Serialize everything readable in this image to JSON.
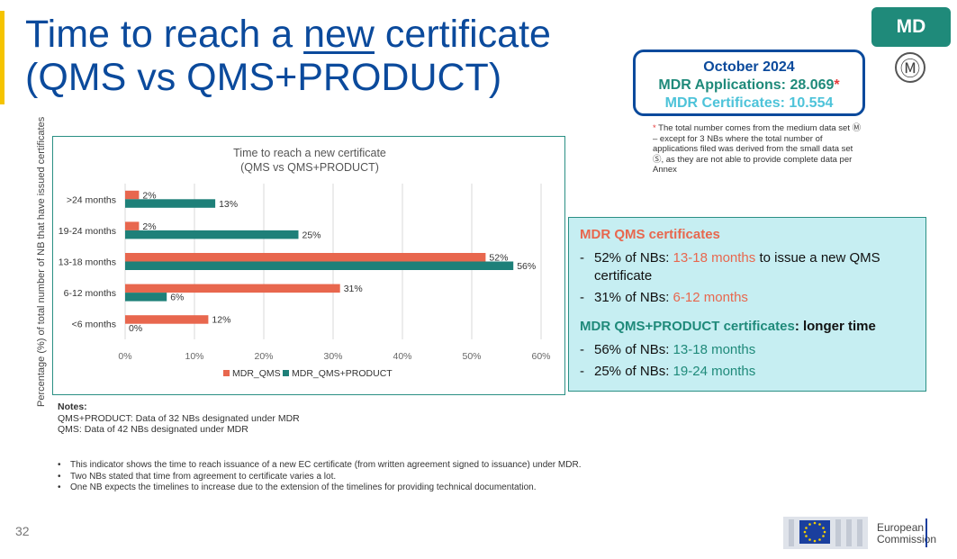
{
  "slide": {
    "title_part1": "Time to reach a ",
    "title_underlined": "new",
    "title_part2": " certificate",
    "title_line2": "(QMS vs QMS+PRODUCT)",
    "badge": "MD",
    "m_symbol": "Ⓜ",
    "page_number": "32"
  },
  "stats": {
    "date": "October 2024",
    "applications": "MDR Applications: 28.069",
    "applications_star": "*",
    "certificates": "MDR Certificates: 10.554"
  },
  "footnote": {
    "star": "*",
    "text": " The total number comes from the medium data set Ⓜ – except for 3 NBs where the total number of applications filed was derived from the small data set Ⓢ, as they are not able to provide complete data per Annex"
  },
  "y_axis_title": "Percentage (%) of total number of NB that have issued certificates",
  "chart_data": {
    "type": "bar",
    "orientation": "horizontal",
    "title": "Time to reach a new certificate",
    "subtitle": "(QMS vs QMS+PRODUCT)",
    "categories": [
      ">24 months",
      "19-24 months",
      "13-18 months",
      "6-12 months",
      "<6 months"
    ],
    "series": [
      {
        "name": "MDR_QMS",
        "values": [
          2,
          2,
          52,
          31,
          12
        ],
        "labels": [
          "2%",
          "2%",
          "52%",
          "31%",
          "12%"
        ],
        "color": "#e8674e"
      },
      {
        "name": "MDR_QMS+PRODUCT",
        "values": [
          13,
          25,
          56,
          6,
          0
        ],
        "labels": [
          "13%",
          "25%",
          "56%",
          "6%",
          "0%"
        ],
        "color": "#1e8079"
      }
    ],
    "xlim": [
      0,
      60
    ],
    "xticks": [
      0,
      10,
      20,
      30,
      40,
      50,
      60
    ],
    "xtick_labels": [
      "0%",
      "10%",
      "20%",
      "30%",
      "40%",
      "50%",
      "60%"
    ],
    "grid": true,
    "legend": "bottom"
  },
  "insights": {
    "qms_heading": "MDR QMS certificates",
    "qms_items": [
      {
        "prefix": "52% of NBs: ",
        "highlight": "13-18 months",
        "suffix": " to issue a new QMS certificate"
      },
      {
        "prefix": "31% of NBs: ",
        "highlight": "6-12 months",
        "suffix": ""
      }
    ],
    "product_heading": "MDR QMS+PRODUCT certificates",
    "product_heading_suffix": ": longer time",
    "product_items": [
      {
        "prefix": "56% of NBs: ",
        "highlight": "13-18 months"
      },
      {
        "prefix": "25% of NBs: ",
        "highlight": "19-24 months"
      }
    ]
  },
  "notes": {
    "title": "Notes:",
    "line1": "QMS+PRODUCT: Data of 32 NBs designated under MDR",
    "line2": "QMS: Data of 42 NBs designated under MDR"
  },
  "bullets": [
    "This indicator shows the time to reach issuance of a new EC certificate (from written agreement signed to issuance) under MDR.",
    "Two NBs stated that time from agreement to certificate varies a lot.",
    "One NB expects the timelines to increase due to the extension of the timelines for providing technical documentation."
  ],
  "logo": {
    "line1": "European",
    "line2": "Commission"
  }
}
